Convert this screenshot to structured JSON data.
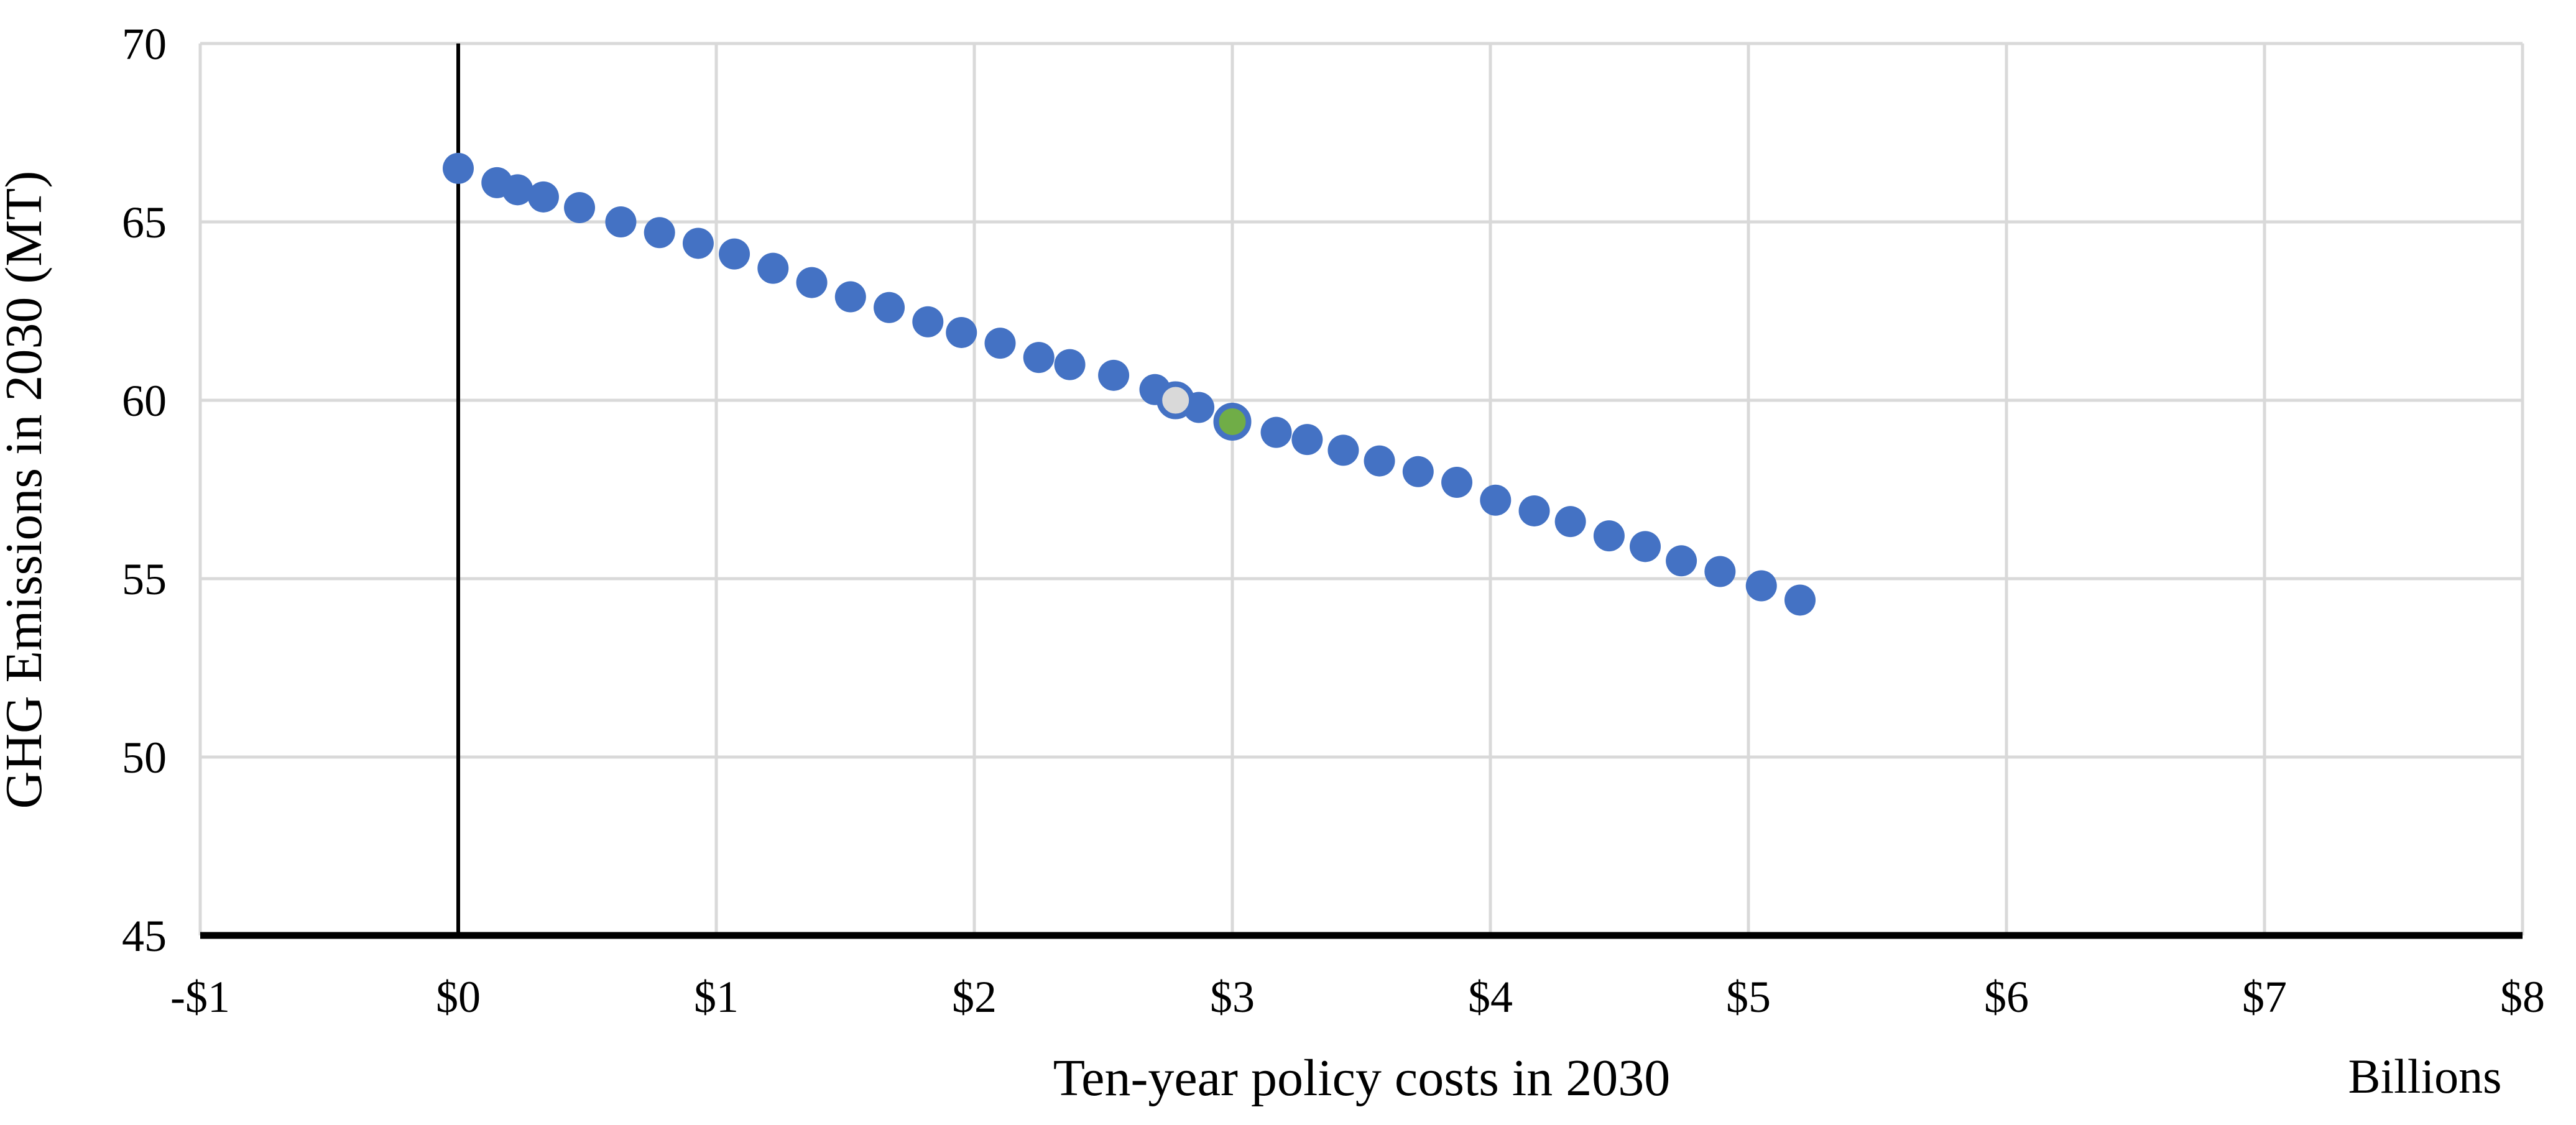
{
  "chart_data": {
    "type": "scatter",
    "title": "",
    "xlabel": "Ten-year policy costs in 2030",
    "x_unit_label": "Billions",
    "ylabel": "GHG Emissions in 2030 (MT)",
    "xlim": [
      -1,
      8
    ],
    "ylim": [
      45,
      70
    ],
    "grid": true,
    "legend": "none",
    "gridline_color": "#D9D9D9",
    "axis_line_color": "#000000",
    "zero_line_at_x": 0,
    "x_ticks": [
      {
        "value": -1,
        "label": "-$1"
      },
      {
        "value": 0,
        "label": "$0"
      },
      {
        "value": 1,
        "label": "$1"
      },
      {
        "value": 2,
        "label": "$2"
      },
      {
        "value": 3,
        "label": "$3"
      },
      {
        "value": 4,
        "label": "$4"
      },
      {
        "value": 5,
        "label": "$5"
      },
      {
        "value": 6,
        "label": "$6"
      },
      {
        "value": 7,
        "label": "$7"
      },
      {
        "value": 8,
        "label": "$8"
      }
    ],
    "y_ticks": [
      {
        "value": 70,
        "label": "70"
      },
      {
        "value": 65,
        "label": "65"
      },
      {
        "value": 60,
        "label": "60"
      },
      {
        "value": 55,
        "label": "55"
      },
      {
        "value": 50,
        "label": "50"
      },
      {
        "value": 45,
        "label": "45"
      }
    ],
    "series": [
      {
        "key": "policy-scenario-points",
        "marker_color": "#4472C4",
        "marker_border_color": "#4472C4",
        "points": [
          [
            0.0,
            66.5
          ],
          [
            0.15,
            66.1
          ],
          [
            0.23,
            65.9
          ],
          [
            0.33,
            65.7
          ],
          [
            0.47,
            65.4
          ],
          [
            0.63,
            65.0
          ],
          [
            0.78,
            64.7
          ],
          [
            0.93,
            64.4
          ],
          [
            1.07,
            64.1
          ],
          [
            1.22,
            63.7
          ],
          [
            1.37,
            63.3
          ],
          [
            1.52,
            62.9
          ],
          [
            1.67,
            62.6
          ],
          [
            1.82,
            62.2
          ],
          [
            1.95,
            61.9
          ],
          [
            2.1,
            61.6
          ],
          [
            2.25,
            61.2
          ],
          [
            2.37,
            61.0
          ],
          [
            2.54,
            60.7
          ],
          [
            2.7,
            60.3
          ],
          [
            2.87,
            59.8
          ],
          [
            3.17,
            59.1
          ],
          [
            3.29,
            58.9
          ],
          [
            3.43,
            58.6
          ],
          [
            3.57,
            58.3
          ],
          [
            3.72,
            58.0
          ],
          [
            3.87,
            57.7
          ],
          [
            4.02,
            57.2
          ],
          [
            4.17,
            56.9
          ],
          [
            4.31,
            56.6
          ],
          [
            4.46,
            56.2
          ],
          [
            4.6,
            55.9
          ],
          [
            4.74,
            55.5
          ],
          [
            4.89,
            55.2
          ],
          [
            5.05,
            54.8
          ],
          [
            5.2,
            54.4
          ]
        ]
      },
      {
        "key": "highlighted-point-gray",
        "marker_color": "#D9D9D9",
        "marker_border_color": "#4472C4",
        "points": [
          [
            2.78,
            60.0
          ]
        ]
      },
      {
        "key": "highlighted-point-green",
        "marker_color": "#70AD47",
        "marker_border_color": "#4472C4",
        "points": [
          [
            3.0,
            59.4
          ]
        ]
      }
    ]
  }
}
